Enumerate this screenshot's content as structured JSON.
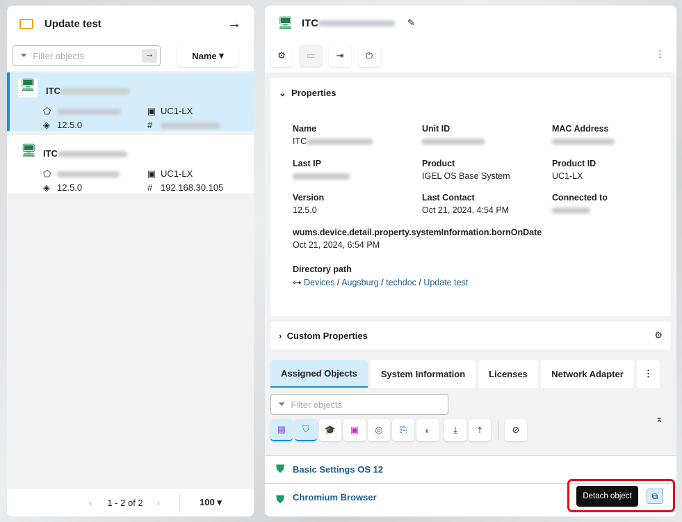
{
  "left": {
    "title": "Update test",
    "filter_placeholder": "Filter objects",
    "sort_label": "Name",
    "items": [
      {
        "name_prefix": "ITC",
        "model": "UC1-LX",
        "version": "12.5.0",
        "ip": ""
      },
      {
        "name_prefix": "ITC",
        "model": "UC1-LX",
        "version": "12.5.0",
        "ip": "192.168.30.105"
      }
    ],
    "pagination": "1 - 2 of 2",
    "page_size": "100"
  },
  "right": {
    "title_prefix": "ITC",
    "properties": {
      "heading": "Properties",
      "name_label": "Name",
      "name_prefix": "ITC",
      "unit_id_label": "Unit ID",
      "mac_label": "MAC Address",
      "last_ip_label": "Last IP",
      "product_label": "Product",
      "product_value": "IGEL OS Base System",
      "product_id_label": "Product ID",
      "product_id_value": "UC1-LX",
      "version_label": "Version",
      "version_value": "12.5.0",
      "last_contact_label": "Last Contact",
      "last_contact_value": "Oct 21, 2024, 4:54 PM",
      "connected_label": "Connected to",
      "born_label": "wums.device.detail.property.systemInformation.bornOnDate",
      "born_value": "Oct 21, 2024, 6:54 PM",
      "dir_label": "Directory path",
      "dir": [
        "Devices",
        "Augsburg",
        "techdoc",
        "Update test"
      ]
    },
    "custom_properties": "Custom Properties",
    "tabs": [
      "Assigned Objects",
      "System Information",
      "Licenses",
      "Network Adapter"
    ],
    "filter_placeholder": "Filter objects",
    "objects": [
      "Basic Settings OS 12",
      "Chromium Browser"
    ],
    "tooltip": "Detach object"
  },
  "colors": {
    "accent": "#1a8fd6",
    "selected": "#d4edfc",
    "highlight": "#e0101a",
    "link": "#1a5c8c"
  }
}
